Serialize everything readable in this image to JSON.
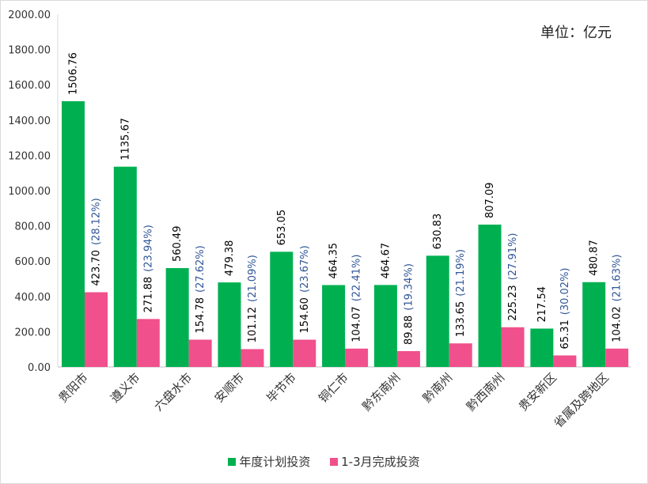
{
  "chart_data": {
    "type": "bar",
    "unit_label": "单位：亿元",
    "ylim": [
      0,
      2000
    ],
    "yticks": [
      "0.00",
      "200.00",
      "400.00",
      "600.00",
      "800.00",
      "1000.00",
      "1200.00",
      "1400.00",
      "1600.00",
      "1800.00",
      "2000.00"
    ],
    "categories": [
      "贵阳市",
      "遵义市",
      "六盘水市",
      "安顺市",
      "毕节市",
      "铜仁市",
      "黔东南州",
      "黔南州",
      "黔西南州",
      "贵安新区",
      "省属及跨地区"
    ],
    "series": [
      {
        "name": "年度计划投资",
        "color": "#00b050",
        "values": [
          1506.76,
          1135.67,
          560.49,
          479.38,
          653.05,
          464.35,
          464.67,
          630.83,
          807.09,
          217.54,
          480.87
        ],
        "labels": [
          "1506.76",
          "1135.67",
          "560.49",
          "479.38",
          "653.05",
          "464.35",
          "464.67",
          "630.83",
          "807.09",
          "217.54",
          "480.87"
        ]
      },
      {
        "name": "1-3月完成投资",
        "color": "#f0508c",
        "values": [
          423.7,
          271.88,
          154.78,
          101.12,
          154.6,
          104.07,
          89.88,
          133.65,
          225.23,
          65.31,
          104.02
        ],
        "labels": [
          "423.70",
          "271.88",
          "154.78",
          "101.12",
          "154.60",
          "104.07",
          "89.88",
          "133.65",
          "225.23",
          "65.31",
          "104.02"
        ]
      }
    ],
    "percent_labels": [
      "(28.12%)",
      "(23.94%)",
      "(27.62%)",
      "(21.09%)",
      "(23.67%)",
      "(22.41%)",
      "(19.34%)",
      "(21.19%)",
      "(27.91%)",
      "(30.02%)",
      "(21.63%)"
    ],
    "percent_color": "#2f5597"
  }
}
